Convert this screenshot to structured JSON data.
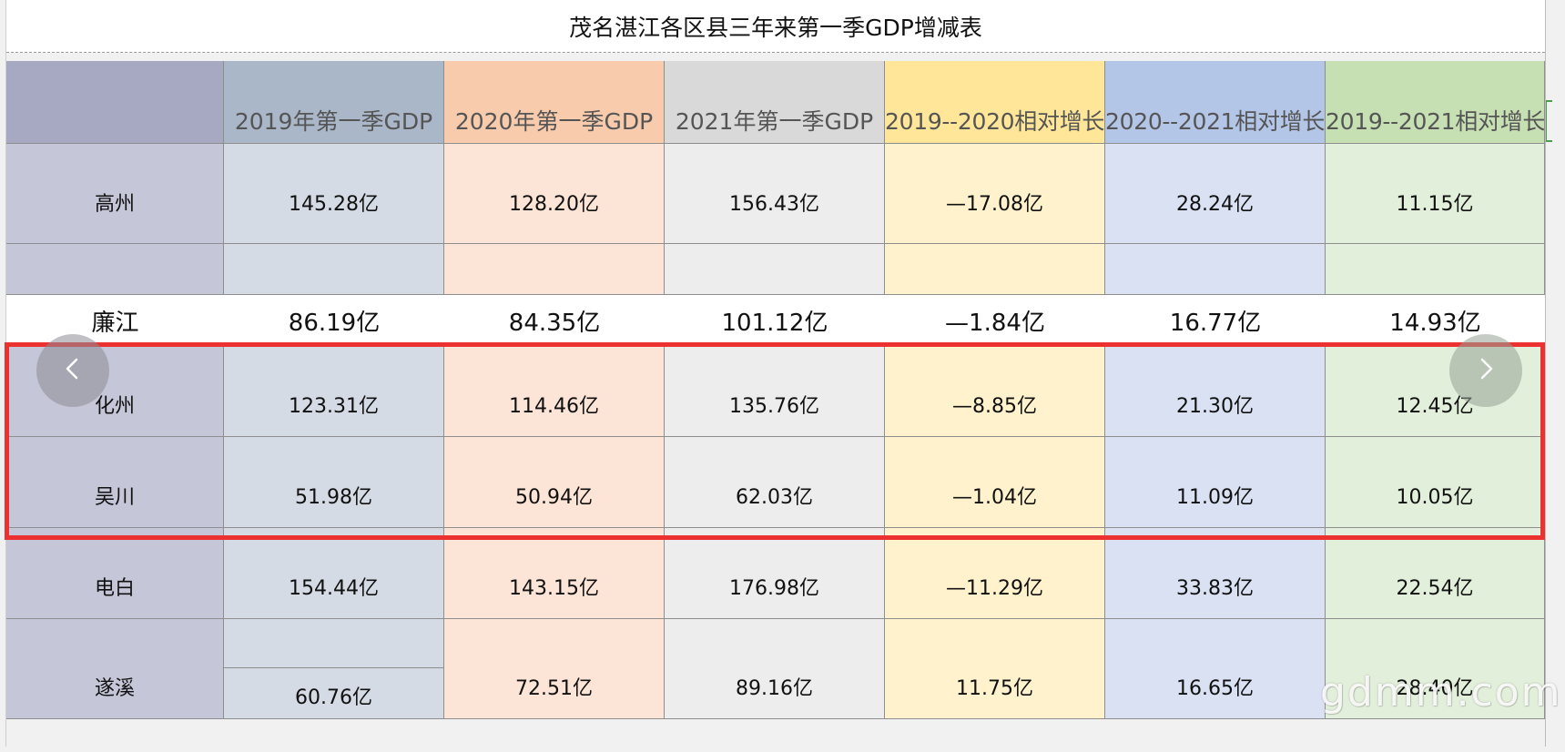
{
  "title": "茂名湛江各区县三年来第一季GDP增减表",
  "headers": [
    "",
    "2019年第一季GDP",
    "2020年第一季GDP",
    "2021年第一季GDP",
    "2019--2020相对增长",
    "2020--2021相对增长",
    "2019--2021相对增长"
  ],
  "rows": [
    {
      "name": "高州",
      "values": [
        "145.28亿",
        "128.20亿",
        "156.43亿",
        "—17.08亿",
        "28.24亿",
        "11.15亿"
      ]
    },
    {
      "name": "廉江",
      "values": [
        "86.19亿",
        "84.35亿",
        "101.12亿",
        "—1.84亿",
        "16.77亿",
        "14.93亿"
      ]
    },
    {
      "name": "化州",
      "values": [
        "123.31亿",
        "114.46亿",
        "135.76亿",
        "—8.85亿",
        "21.30亿",
        "12.45亿"
      ]
    },
    {
      "name": "吴川",
      "values": [
        "51.98亿",
        "50.94亿",
        "62.03亿",
        "—1.04亿",
        "11.09亿",
        "10.05亿"
      ]
    },
    {
      "name": "电白",
      "values": [
        "154.44亿",
        "143.15亿",
        "176.98亿",
        "—11.29亿",
        "33.83亿",
        "22.54亿"
      ]
    },
    {
      "name": "遂溪",
      "values": [
        "60.76亿",
        "72.51亿",
        "89.16亿",
        "11.75亿",
        "16.65亿",
        "28.40亿"
      ]
    }
  ],
  "column_colors": {
    "header": [
      "#a7a9c3",
      "#a9b7c8",
      "#f8cbad",
      "#d9d9d9",
      "#ffe699",
      "#b4c6e7",
      "#c6e0b4"
    ],
    "body": [
      "#c5c6d8",
      "#d5dbe4",
      "#fce4d6",
      "#ededed",
      "#fff2cc",
      "#d9e1f2",
      "#e2efda"
    ]
  },
  "highlight_color": "#ec3131",
  "nav": {
    "prev_icon": "chevron-left-icon",
    "next_icon": "chevron-right-icon"
  },
  "watermark": "gdmm.com"
}
